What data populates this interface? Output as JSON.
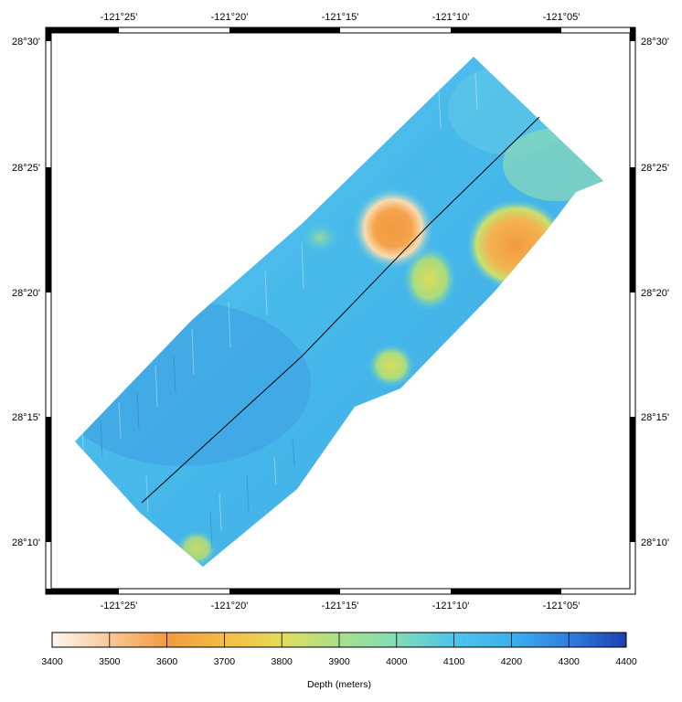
{
  "map": {
    "longitude_ticks": [
      "-121°25'",
      "-121°20'",
      "-121°15'",
      "-121°10'",
      "-121°05'"
    ],
    "latitude_ticks": [
      "28°30'",
      "28°25'",
      "28°20'",
      "28°15'",
      "28°10'"
    ]
  },
  "colorbar": {
    "ticks": [
      "3400",
      "3500",
      "3600",
      "3700",
      "3800",
      "3900",
      "4000",
      "4100",
      "4200",
      "4300",
      "4400"
    ],
    "title": "Depth (meters)",
    "colors": [
      "#fdf3ec",
      "#f6b27a",
      "#f29a40",
      "#f4bc45",
      "#e4dc5a",
      "#a8e08c",
      "#82dcb4",
      "#4cc4ea",
      "#3cb0ec",
      "#2e7ee0",
      "#1f3fb0"
    ]
  },
  "chart_data": {
    "type": "heatmap",
    "title": "",
    "colorbar_label": "Depth (meters)",
    "depth_range": [
      3400,
      4400
    ]
  }
}
